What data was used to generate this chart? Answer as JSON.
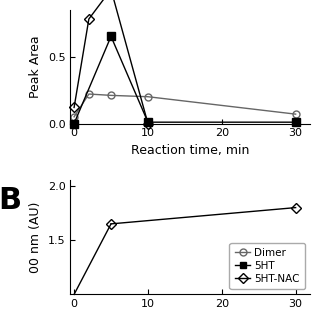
{
  "panel_A": {
    "xlabel": "Reaction time, min",
    "ylabel": "Peak Area",
    "xlim": [
      -0.5,
      32
    ],
    "ylim": [
      0.0,
      0.85
    ],
    "yticks": [
      0,
      0.5
    ],
    "xticks": [
      0,
      10,
      20,
      30
    ],
    "series": {
      "Dimer": {
        "x": [
          0,
          2,
          5,
          10,
          30
        ],
        "y": [
          0.05,
          0.22,
          0.21,
          0.2,
          0.07
        ],
        "marker": "o",
        "fillstyle": "none",
        "color": "#666666",
        "markersize": 5,
        "linewidth": 1.0
      },
      "5HT": {
        "x": [
          0,
          5,
          10,
          30
        ],
        "y": [
          0.0,
          0.65,
          0.01,
          0.01
        ],
        "marker": "s",
        "fillstyle": "full",
        "color": "#000000",
        "markersize": 6,
        "linewidth": 1.0
      },
      "5HT-NAC": {
        "x": [
          0,
          2,
          5,
          10
        ],
        "y": [
          0.12,
          0.78,
          1.0,
          0.0
        ],
        "marker": "D",
        "fillstyle": "none",
        "color": "#000000",
        "markersize": 5,
        "linewidth": 1.0
      }
    }
  },
  "panel_B": {
    "ylabel": "00 nm (AU)",
    "xlim": [
      -0.5,
      32
    ],
    "ylim": [
      1.0,
      2.05
    ],
    "yticks": [
      1.5,
      2.0
    ],
    "xticks": [
      0,
      10,
      20,
      30
    ],
    "legend": {
      "Dimer": {
        "marker": "o",
        "fillstyle": "none",
        "color": "#666666"
      },
      "5HT": {
        "marker": "s",
        "fillstyle": "full",
        "color": "#000000"
      },
      "5HT-NAC": {
        "marker": "D",
        "fillstyle": "none",
        "color": "#000000"
      }
    },
    "series": {
      "5HT-NAC": {
        "x": [
          5,
          30
        ],
        "y": [
          1.65,
          1.8
        ],
        "marker": "D",
        "fillstyle": "none",
        "color": "#000000",
        "markersize": 5,
        "linewidth": 1.0
      },
      "5HT-NAC-low": {
        "x": [
          0,
          5
        ],
        "y": [
          1.0,
          1.65
        ],
        "marker": "none",
        "fillstyle": "none",
        "color": "#000000",
        "markersize": 0,
        "linewidth": 1.0
      }
    }
  },
  "background_color": "#ffffff"
}
